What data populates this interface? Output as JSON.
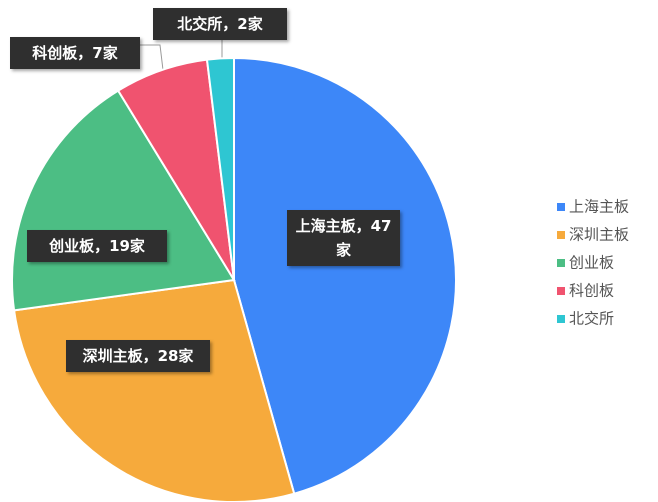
{
  "chart_data": {
    "type": "pie",
    "categories": [
      "上海主板",
      "深圳主板",
      "创业板",
      "科创板",
      "北交所"
    ],
    "values": [
      47,
      28,
      19,
      7,
      2
    ],
    "value_labels": [
      "上海主板，47家",
      "深圳主板，28家",
      "创业板，19家",
      "科创板，7家",
      "北交所，2家"
    ],
    "colors": [
      "#3d87f8",
      "#f6aa3c",
      "#4cbe84",
      "#f0536f",
      "#2ec6d2"
    ],
    "legend": "right"
  }
}
